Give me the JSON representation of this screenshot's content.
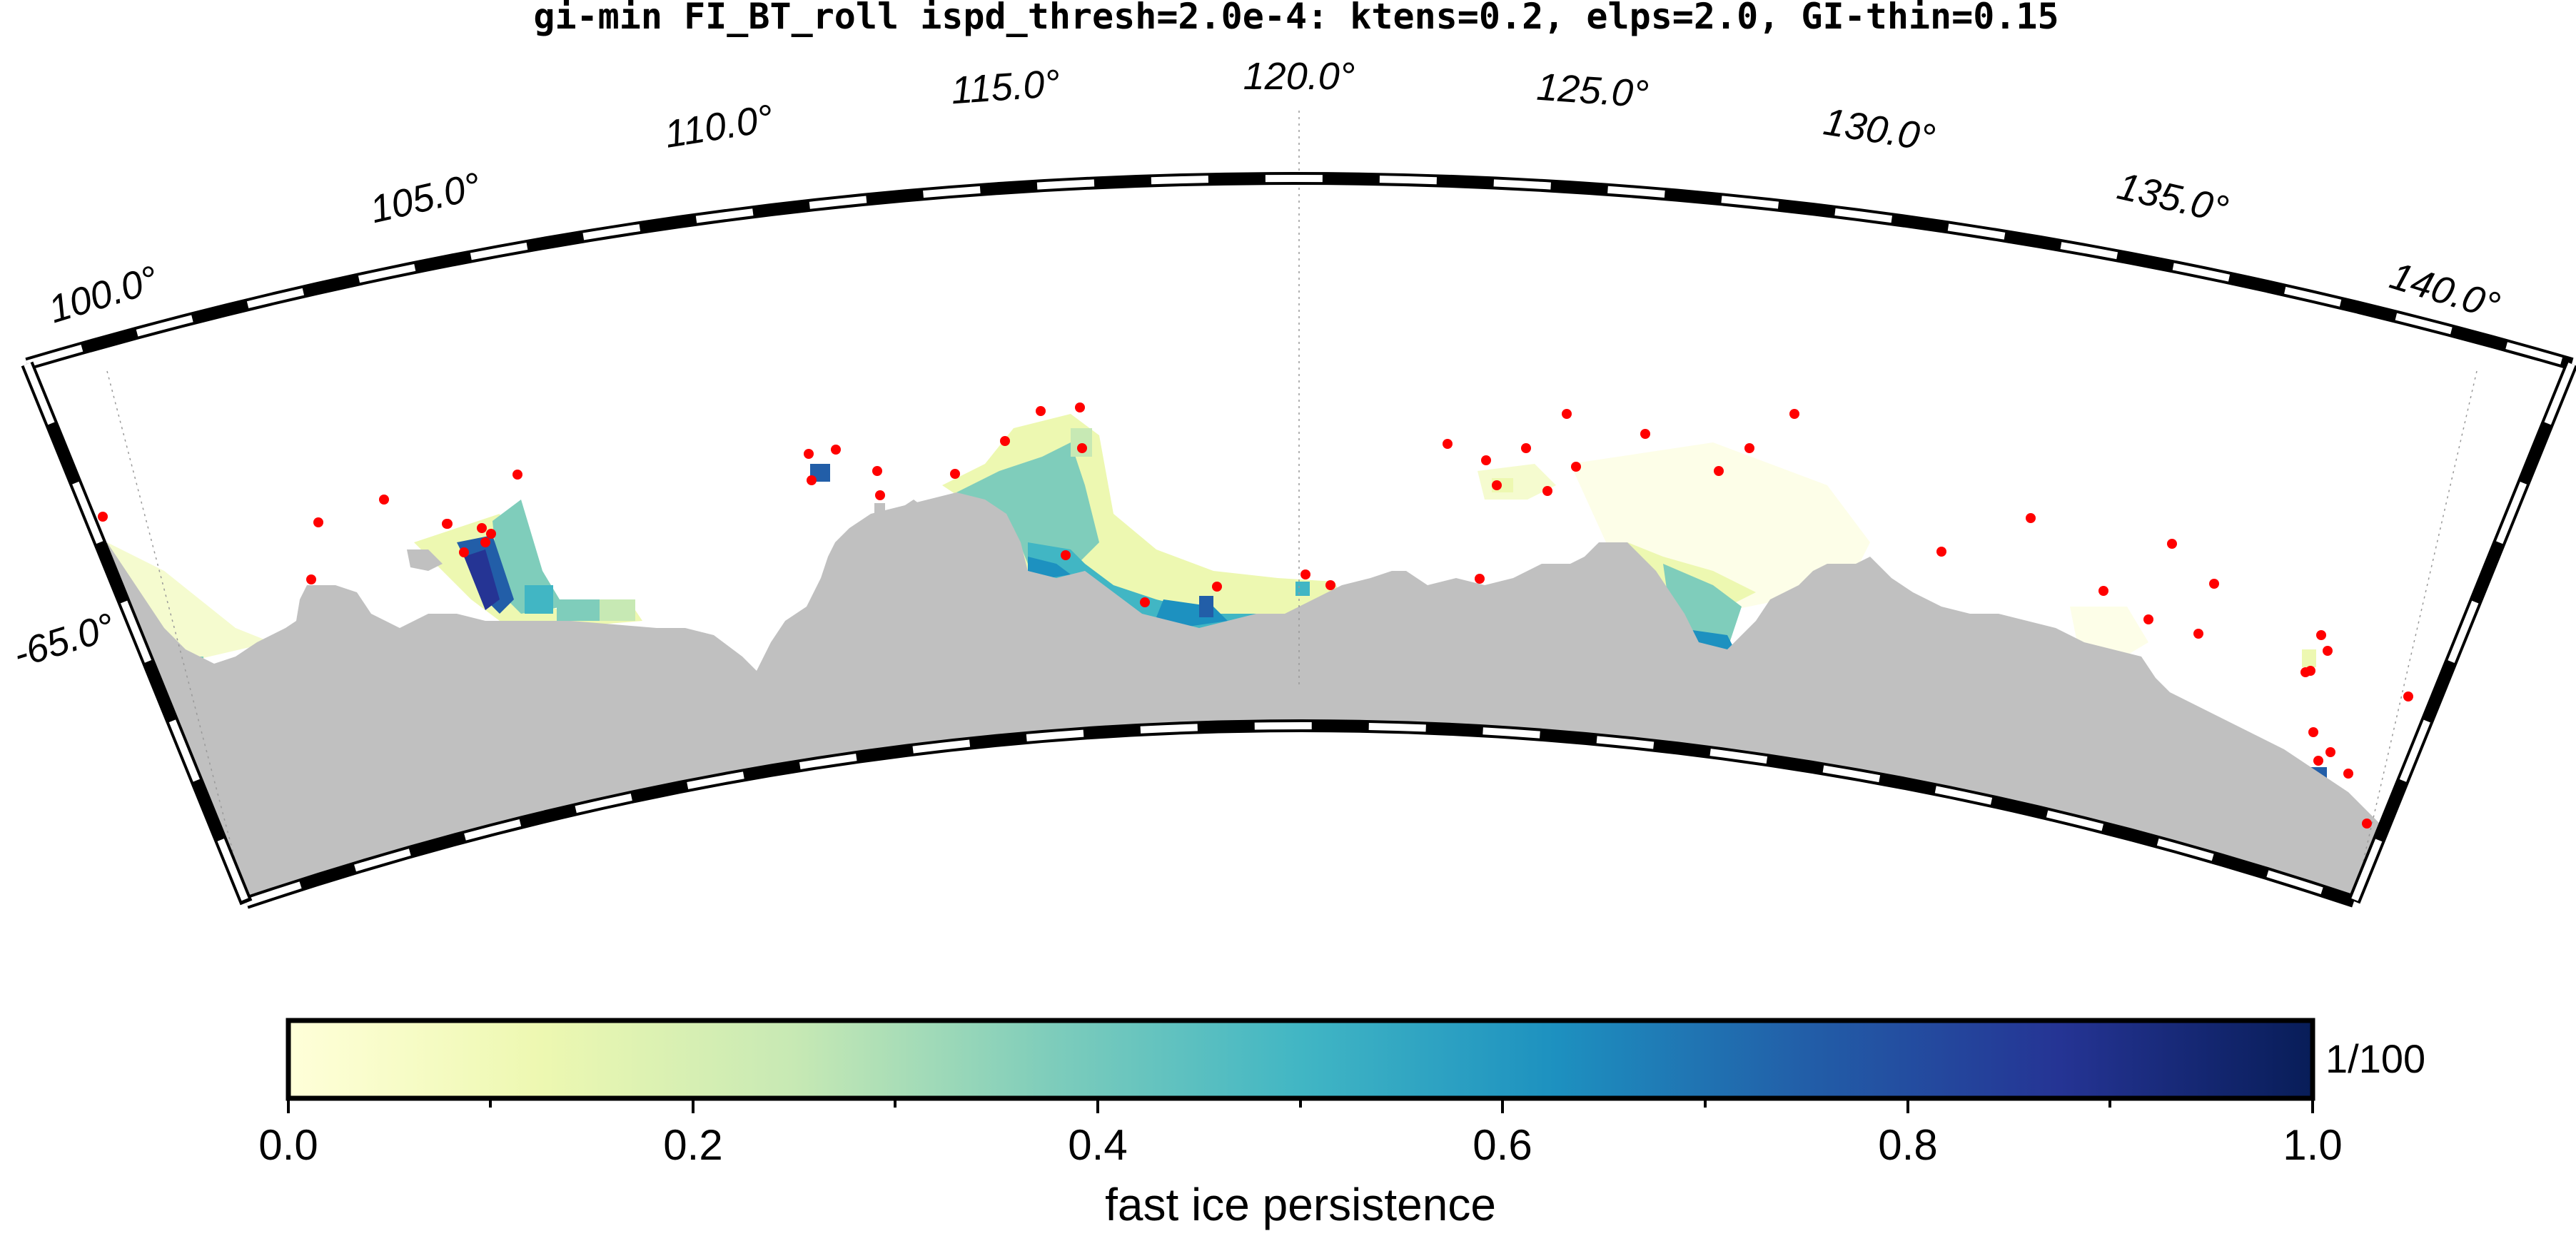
{
  "title": "gi-min FI_BT_roll ispd_thresh=2.0e-4: ktens=0.2, elps=2.0, GI-thin=0.15",
  "map": {
    "longitude_labels": [
      "100.0°",
      "105.0°",
      "110.0°",
      "115.0°",
      "120.0°",
      "125.0°",
      "130.0°",
      "135.0°",
      "140.0°"
    ],
    "latitude_labels": [
      "-65.0°"
    ],
    "colors": {
      "land": "#c0c0c0",
      "grounded_icebergs": "#ff0000",
      "frame_dark": "#000000",
      "frame_light": "#ffffff"
    }
  },
  "colorbar": {
    "label": "fast ice persistence",
    "unit": "1/100",
    "ticks": [
      "0.0",
      "0.2",
      "0.4",
      "0.6",
      "0.8",
      "1.0"
    ],
    "range": [
      0.0,
      1.0
    ],
    "colormap": "YlGnBu",
    "stops": [
      "#ffffd9",
      "#edf8b1",
      "#c7e9b4",
      "#7fcdbb",
      "#41b6c4",
      "#1d91c0",
      "#225ea8",
      "#253494",
      "#081d58"
    ]
  }
}
